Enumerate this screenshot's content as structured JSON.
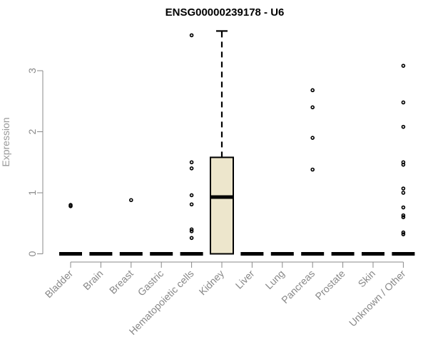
{
  "chart_data": {
    "type": "box",
    "title": "ENSG00000239178 - U6",
    "xlabel": "",
    "ylabel": "Expression",
    "ylim": [
      0,
      3.7
    ],
    "yticks": [
      0,
      1,
      2,
      3
    ],
    "grid": false,
    "legend": "none",
    "colors": {
      "box_fill": "#ede6cc",
      "axis": "#888888",
      "text": "#000000"
    },
    "categories": [
      "Bladder",
      "Brain",
      "Breast",
      "Gastric",
      "Hematopoietic cells",
      "Kidney",
      "Liver",
      "Lung",
      "Pancreas",
      "Prostate",
      "Skin",
      "Unknown / Other"
    ],
    "boxes": [
      {
        "category": "Bladder",
        "min": 0,
        "q1": 0,
        "median": 0,
        "q3": 0,
        "max": 0,
        "outliers": [
          0.78,
          0.8
        ]
      },
      {
        "category": "Brain",
        "min": 0,
        "q1": 0,
        "median": 0,
        "q3": 0,
        "max": 0,
        "outliers": []
      },
      {
        "category": "Breast",
        "min": 0,
        "q1": 0,
        "median": 0,
        "q3": 0,
        "max": 0,
        "outliers": [
          0.88
        ]
      },
      {
        "category": "Gastric",
        "min": 0,
        "q1": 0,
        "median": 0,
        "q3": 0,
        "max": 0,
        "outliers": []
      },
      {
        "category": "Hematopoietic cells",
        "min": 0,
        "q1": 0,
        "median": 0,
        "q3": 0,
        "max": 0,
        "outliers": [
          0.26,
          0.37,
          0.4,
          0.81,
          0.96,
          1.4,
          1.5,
          3.58
        ]
      },
      {
        "category": "Kidney",
        "min": 0,
        "q1": 0,
        "median": 0.93,
        "q3": 1.58,
        "max": 3.65,
        "outliers": []
      },
      {
        "category": "Liver",
        "min": 0,
        "q1": 0,
        "median": 0,
        "q3": 0,
        "max": 0,
        "outliers": []
      },
      {
        "category": "Lung",
        "min": 0,
        "q1": 0,
        "median": 0,
        "q3": 0,
        "max": 0,
        "outliers": []
      },
      {
        "category": "Pancreas",
        "min": 0,
        "q1": 0,
        "median": 0,
        "q3": 0,
        "max": 0,
        "outliers": [
          1.38,
          1.9,
          2.4,
          2.68
        ]
      },
      {
        "category": "Prostate",
        "min": 0,
        "q1": 0,
        "median": 0,
        "q3": 0,
        "max": 0,
        "outliers": []
      },
      {
        "category": "Skin",
        "min": 0,
        "q1": 0,
        "median": 0,
        "q3": 0,
        "max": 0,
        "outliers": []
      },
      {
        "category": "Unknown / Other",
        "min": 0,
        "q1": 0,
        "median": 0,
        "q3": 0,
        "max": 0,
        "outliers": [
          0.32,
          0.35,
          0.6,
          0.63,
          0.76,
          1.0,
          1.07,
          1.46,
          1.5,
          2.08,
          2.48,
          3.08
        ]
      }
    ]
  }
}
